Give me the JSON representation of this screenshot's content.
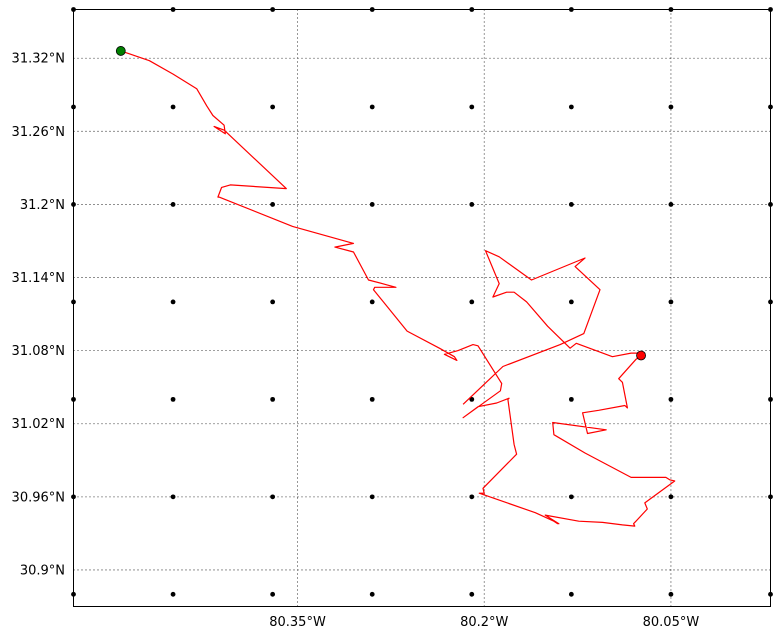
{
  "map": {
    "lon_range": [
      -80.53,
      -79.97
    ],
    "lat_range": [
      30.87,
      31.36
    ],
    "lon_ticks": [
      {
        "value": -80.35,
        "label": "80.35°W"
      },
      {
        "value": -80.2,
        "label": "80.2°W"
      },
      {
        "value": -80.05,
        "label": "80.05°W"
      }
    ],
    "lat_ticks": [
      {
        "value": 31.32,
        "label": "31.32°N"
      },
      {
        "value": 31.26,
        "label": "31.26°N"
      },
      {
        "value": 31.2,
        "label": "31.2°N"
      },
      {
        "value": 31.14,
        "label": "31.14°N"
      },
      {
        "value": 31.08,
        "label": "31.08°N"
      },
      {
        "value": 31.02,
        "label": "31.02°N"
      },
      {
        "value": 30.96,
        "label": "30.96°N"
      },
      {
        "value": 30.9,
        "label": "30.9°N"
      }
    ],
    "gridlines": "dotted",
    "dot_grid": {
      "lons": [
        -80.53,
        -80.45,
        -80.37,
        -80.29,
        -80.21,
        -80.13,
        -80.05,
        -79.97
      ],
      "lats": [
        31.36,
        31.28,
        31.2,
        31.12,
        31.04,
        30.96,
        30.88
      ]
    },
    "track": {
      "color": "#ff0000",
      "points": [
        [
          -80.492,
          31.326
        ],
        [
          -80.469,
          31.318
        ],
        [
          -80.45,
          31.307
        ],
        [
          -80.431,
          31.295
        ],
        [
          -80.423,
          31.281
        ],
        [
          -80.418,
          31.273
        ],
        [
          -80.409,
          31.265
        ],
        [
          -80.408,
          31.258
        ],
        [
          -80.417,
          31.264
        ],
        [
          -80.409,
          31.261
        ],
        [
          -80.359,
          31.213
        ],
        [
          -80.404,
          31.216
        ],
        [
          -80.411,
          31.214
        ],
        [
          -80.414,
          31.206
        ],
        [
          -80.413,
          31.206
        ],
        [
          -80.354,
          31.182
        ],
        [
          -80.305,
          31.168
        ],
        [
          -80.32,
          31.165
        ],
        [
          -80.305,
          31.161
        ],
        [
          -80.293,
          31.138
        ],
        [
          -80.278,
          31.134
        ],
        [
          -80.271,
          31.132
        ],
        [
          -80.288,
          31.132
        ],
        [
          -80.289,
          31.13
        ],
        [
          -80.262,
          31.096
        ],
        [
          -80.236,
          31.082
        ],
        [
          -80.224,
          31.075
        ],
        [
          -80.222,
          31.072
        ],
        [
          -80.232,
          31.077
        ],
        [
          -80.221,
          31.08
        ],
        [
          -80.209,
          31.085
        ],
        [
          -80.205,
          31.084
        ],
        [
          -80.186,
          31.053
        ],
        [
          -80.187,
          31.047
        ],
        [
          -80.217,
          31.025
        ],
        [
          -80.205,
          31.034
        ],
        [
          -80.19,
          31.037
        ],
        [
          -80.18,
          31.041
        ],
        [
          -80.181,
          31.04
        ],
        [
          -80.176,
          31.003
        ],
        [
          -80.174,
          30.995
        ],
        [
          -80.201,
          30.967
        ],
        [
          -80.2,
          30.963
        ],
        [
          -80.204,
          30.963
        ],
        [
          -80.159,
          30.947
        ],
        [
          -80.144,
          30.94
        ],
        [
          -80.141,
          30.938
        ],
        [
          -80.14,
          30.938
        ],
        [
          -80.151,
          30.945
        ],
        [
          -80.124,
          30.94
        ],
        [
          -80.105,
          30.939
        ],
        [
          -80.089,
          30.937
        ],
        [
          -80.079,
          30.936
        ],
        [
          -80.08,
          30.938
        ],
        [
          -80.069,
          30.95
        ],
        [
          -80.071,
          30.955
        ],
        [
          -80.047,
          30.973
        ],
        [
          -80.051,
          30.974
        ],
        [
          -80.054,
          30.976
        ],
        [
          -80.082,
          30.976
        ],
        [
          -80.119,
          30.996
        ],
        [
          -80.144,
          31.011
        ],
        [
          -80.145,
          31.021
        ],
        [
          -80.102,
          31.015
        ],
        [
          -80.117,
          31.012
        ],
        [
          -80.121,
          31.029
        ],
        [
          -80.108,
          31.031
        ],
        [
          -80.087,
          31.035
        ],
        [
          -80.085,
          31.033
        ],
        [
          -80.089,
          31.054
        ],
        [
          -80.092,
          31.057
        ],
        [
          -80.078,
          31.073
        ],
        [
          -80.071,
          31.078
        ],
        [
          -80.082,
          31.078
        ],
        [
          -80.097,
          31.075
        ],
        [
          -80.126,
          31.086
        ],
        [
          -80.131,
          31.082
        ],
        [
          -80.149,
          31.1
        ],
        [
          -80.166,
          31.12
        ],
        [
          -80.176,
          31.128
        ],
        [
          -80.182,
          31.128
        ],
        [
          -80.193,
          31.124
        ],
        [
          -80.188,
          31.135
        ],
        [
          -80.199,
          31.162
        ],
        [
          -80.188,
          31.157
        ],
        [
          -80.162,
          31.138
        ],
        [
          -80.119,
          31.156
        ],
        [
          -80.127,
          31.149
        ],
        [
          -80.107,
          31.13
        ],
        [
          -80.12,
          31.094
        ],
        [
          -80.139,
          31.085
        ],
        [
          -80.185,
          31.067
        ],
        [
          -80.217,
          31.036
        ]
      ],
      "start": [
        -80.492,
        31.326
      ],
      "end": [
        -80.217,
        31.036
      ]
    },
    "start_marker_color": "#008000",
    "end_marker_color": "#ff0000"
  }
}
